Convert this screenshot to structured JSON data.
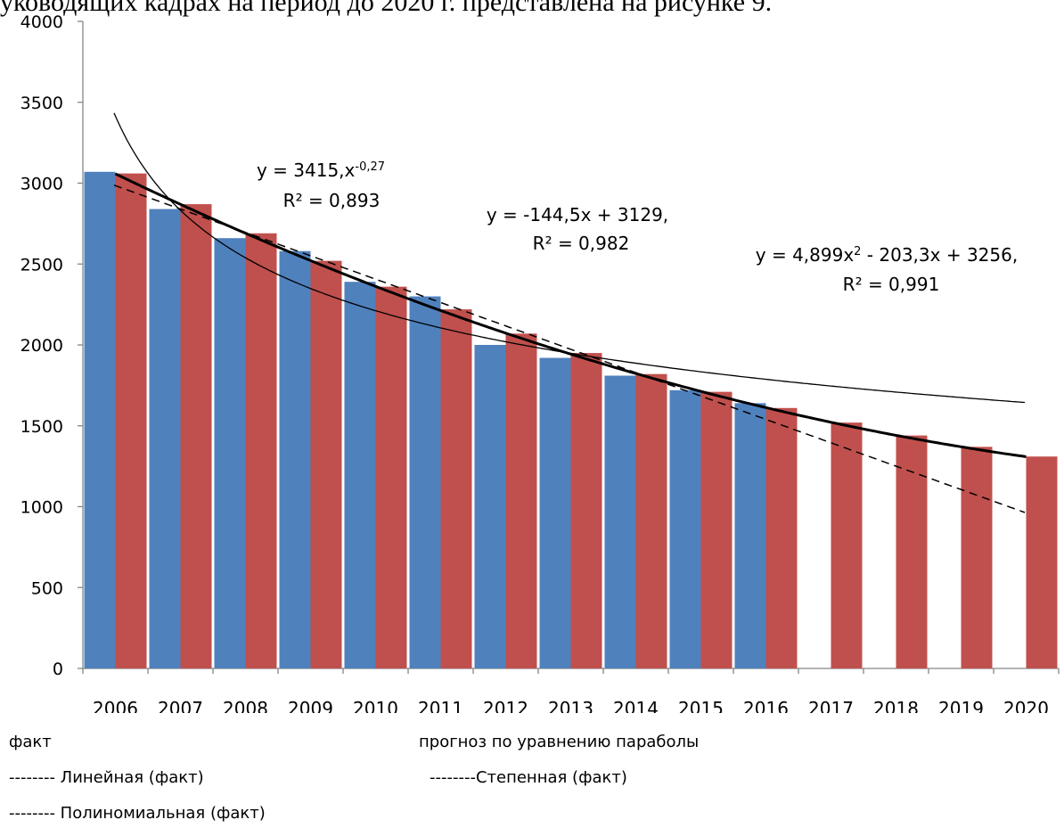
{
  "header_fragment": "уководящих кадрах на период до 2020 г. представлена на рисунке 9.",
  "chart_data": {
    "type": "bar",
    "categories": [
      "2006",
      "2007",
      "2008",
      "2009",
      "2010",
      "2011",
      "2012",
      "2013",
      "2014",
      "2015",
      "2016",
      "2017",
      "2018",
      "2019",
      "2020"
    ],
    "series": [
      {
        "name": "факт",
        "color": "#4f81bd",
        "values": [
          3070,
          2840,
          2660,
          2580,
          2390,
          2300,
          2000,
          1920,
          1810,
          1720,
          1640,
          null,
          null,
          null,
          null
        ]
      },
      {
        "name": "прогноз по уравнению параболы",
        "color": "#c0504d",
        "values": [
          3060,
          2870,
          2690,
          2520,
          2360,
          2220,
          2070,
          1950,
          1820,
          1710,
          1610,
          1520,
          1440,
          1370,
          1310
        ]
      }
    ],
    "trendlines": [
      {
        "name": "Линейная (факт)",
        "style": "dashed",
        "equation": "y = -144,5x + 3129,",
        "r2": "R² = 0,982",
        "a": -144.5,
        "b": 3129
      },
      {
        "name": "Степенная (факт)",
        "style": "thin",
        "equation": "y = 3415,x-0,27",
        "r2": "R² = 0,893",
        "coef": 3415,
        "exp": -0.27
      },
      {
        "name": "Полиномиальная (факт)",
        "style": "thick",
        "equation": "y = 4,899x2 - 203,3x + 3256,",
        "r2": "R² = 0,991",
        "a": 4.899,
        "b": -203.3,
        "c": 3256
      }
    ],
    "ylim": [
      0,
      4000
    ],
    "yticks": [
      0,
      500,
      1000,
      1500,
      2000,
      2500,
      3000,
      3500,
      4000
    ],
    "grid": false
  },
  "legend": {
    "fact": "факт",
    "forecast": "прогноз по уравнению параболы",
    "linear": "-------- Линейная (факт)",
    "power": "--------Степенная (факт)",
    "poly": "-------- Полиномиальная (факт)"
  }
}
